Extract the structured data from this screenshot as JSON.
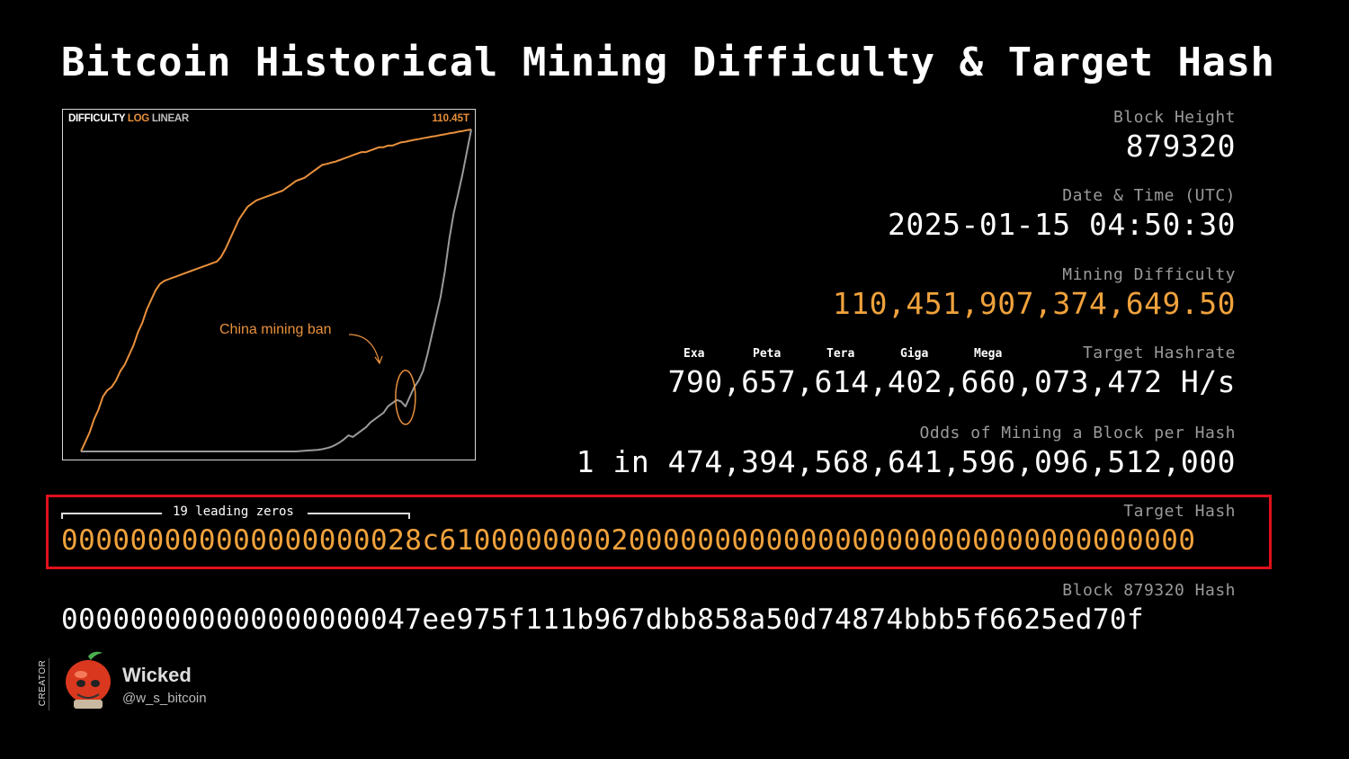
{
  "title": "Bitcoin Historical Mining Difficulty & Target Hash",
  "chart_data": {
    "type": "line",
    "tabs": {
      "difficulty": "DIFFICULTY",
      "log": "LOG",
      "linear": "LINEAR"
    },
    "max_label": "110.45T",
    "annotation": "China mining ban",
    "y_max": 110.45,
    "colors": {
      "log": "#e8903c",
      "linear": "#9a9a9a"
    },
    "series": [
      {
        "values": [
          0.0,
          0.03,
          0.06,
          0.1,
          0.13,
          0.17,
          0.19,
          0.2,
          0.22,
          0.25,
          0.27,
          0.3,
          0.33,
          0.37,
          0.4,
          0.44,
          0.47,
          0.5,
          0.52,
          0.53,
          0.535,
          0.54,
          0.545,
          0.55,
          0.555,
          0.56,
          0.565,
          0.57,
          0.575,
          0.58,
          0.585,
          0.59,
          0.605,
          0.63,
          0.66,
          0.69,
          0.72,
          0.74,
          0.76,
          0.77,
          0.78,
          0.785,
          0.79,
          0.795,
          0.8,
          0.805,
          0.81,
          0.82,
          0.83,
          0.84,
          0.845,
          0.85,
          0.86,
          0.87,
          0.88,
          0.89,
          0.893,
          0.897,
          0.9,
          0.905,
          0.91,
          0.915,
          0.92,
          0.925,
          0.93,
          0.93,
          0.935,
          0.94,
          0.945,
          0.945,
          0.95,
          0.95,
          0.955,
          0.96,
          0.962,
          0.965,
          0.968,
          0.97,
          0.973,
          0.975,
          0.978,
          0.98,
          0.983,
          0.985,
          0.988,
          0.99,
          0.993,
          0.995,
          0.998,
          1.0
        ]
      },
      {
        "values": [
          0.0,
          0.0,
          0.0,
          0.0,
          0.0,
          0.0,
          0.0,
          0.0,
          0.0,
          0.0,
          0.0,
          0.0,
          0.0,
          0.0,
          0.0,
          0.0,
          0.0,
          0.0,
          0.0,
          0.0,
          0.0,
          0.0,
          0.0,
          0.0,
          0.0,
          0.0,
          0.0,
          0.0,
          0.0,
          0.0,
          0.0,
          0.0,
          0.0,
          0.0,
          0.0,
          0.0,
          0.0,
          0.0,
          0.0,
          0.0,
          0.0,
          0.0,
          0.0,
          0.0,
          0.0,
          0.0,
          0.0,
          0.0,
          0.0,
          0.0,
          0.001,
          0.002,
          0.003,
          0.004,
          0.005,
          0.007,
          0.01,
          0.014,
          0.02,
          0.028,
          0.038,
          0.05,
          0.045,
          0.055,
          0.065,
          0.075,
          0.09,
          0.1,
          0.11,
          0.12,
          0.14,
          0.15,
          0.16,
          0.155,
          0.14,
          0.17,
          0.2,
          0.22,
          0.25,
          0.3,
          0.36,
          0.42,
          0.48,
          0.56,
          0.66,
          0.74,
          0.8,
          0.86,
          0.93,
          1.0
        ]
      }
    ]
  },
  "stats": {
    "block_height_label": "Block Height",
    "block_height": "879320",
    "datetime_label": "Date & Time (UTC)",
    "datetime": "2025-01-15 04:50:30",
    "difficulty_label": "Mining Difficulty",
    "difficulty": "110,451,907,374,649.50",
    "hashrate_label": "Target Hashrate",
    "hashrate": "790,657,614,402,660,073,472 H/s",
    "hashrate_units": [
      "Exa",
      "Peta",
      "Tera",
      "Giga",
      "Mega"
    ],
    "odds_label": "Odds of Mining a Block per Hash",
    "odds": "1 in 474,394,568,641,596,096,512,000"
  },
  "target": {
    "zeros_label": "19 leading zeros",
    "label": "Target Hash",
    "hash": "000000000000000000028c61000000002000000000000000000000000000000000"
  },
  "block": {
    "label": "Block 879320 Hash",
    "hash": "000000000000000000047ee975f111b967dbb858a50d74874bbb5f6625ed70f"
  },
  "creator": {
    "vertical_label": "CREATOR",
    "name": "Wicked",
    "handle": "@w_s_bitcoin"
  }
}
